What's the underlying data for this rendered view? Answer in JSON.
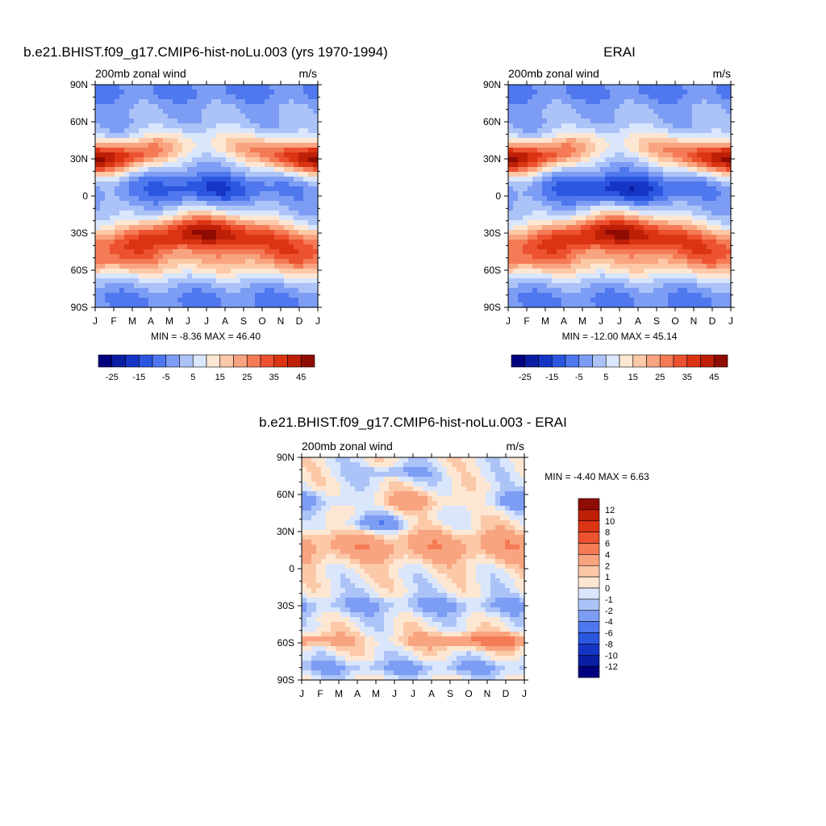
{
  "chart_data": [
    {
      "type": "heatmap",
      "title": "b.e21.BHIST.f09_g17.CMIP6-hist-noLu.003 (yrs 1970-1994)",
      "left_label": "200mb zonal wind",
      "right_label": "m/s",
      "x_ticks": [
        "J",
        "F",
        "M",
        "A",
        "M",
        "J",
        "J",
        "A",
        "S",
        "O",
        "N",
        "D",
        "J"
      ],
      "y_ticks": [
        "90N",
        "60N",
        "30N",
        "0",
        "30S",
        "60S",
        "90S"
      ],
      "min_max": "MIN =  -8.36 MAX =  46.40",
      "colorbar_labels": [
        "-25",
        "-15",
        "-5",
        "5",
        "15",
        "25",
        "35",
        "45"
      ],
      "contour_levels": [
        -30,
        -25,
        -20,
        -15,
        -10,
        -5,
        0,
        5,
        10,
        15,
        20,
        25,
        30,
        35,
        40,
        45,
        50
      ],
      "features": [
        {
          "month": 1.0,
          "lat": 28,
          "value": 42
        },
        {
          "month": 7.5,
          "lat": -30,
          "value": 46
        },
        {
          "month": 12.0,
          "lat": 30,
          "value": 40
        },
        {
          "month": 7.5,
          "lat": 5,
          "value": -8
        },
        {
          "month": 7.0,
          "lat": 35,
          "value": 12
        },
        {
          "month": 7.0,
          "lat": -55,
          "value": 28
        }
      ]
    },
    {
      "type": "heatmap",
      "title": "ERAI",
      "left_label": "200mb zonal wind",
      "right_label": "m/s",
      "x_ticks": [
        "J",
        "F",
        "M",
        "A",
        "M",
        "J",
        "J",
        "A",
        "S",
        "O",
        "N",
        "D",
        "J"
      ],
      "y_ticks": [
        "90N",
        "60N",
        "30N",
        "0",
        "30S",
        "60S",
        "90S"
      ],
      "min_max": "MIN = -12.00 MAX =  45.14",
      "colorbar_labels": [
        "-25",
        "-15",
        "-5",
        "5",
        "15",
        "25",
        "35",
        "45"
      ],
      "contour_levels": [
        -30,
        -25,
        -20,
        -15,
        -10,
        -5,
        0,
        5,
        10,
        15,
        20,
        25,
        30,
        35,
        40,
        45,
        50
      ],
      "features": [
        {
          "month": 1.0,
          "lat": 28,
          "value": 42
        },
        {
          "month": 7.5,
          "lat": -30,
          "value": 43
        },
        {
          "month": 12.0,
          "lat": 30,
          "value": 40
        },
        {
          "month": 7.5,
          "lat": 5,
          "value": -12
        },
        {
          "month": 7.0,
          "lat": 35,
          "value": 12
        },
        {
          "month": 7.0,
          "lat": -55,
          "value": 26
        }
      ]
    },
    {
      "type": "heatmap",
      "title": "b.e21.BHIST.f09_g17.CMIP6-hist-noLu.003 - ERAI",
      "left_label": "200mb zonal wind",
      "right_label": "m/s",
      "x_ticks": [
        "J",
        "F",
        "M",
        "A",
        "M",
        "J",
        "J",
        "A",
        "S",
        "O",
        "N",
        "D",
        "J"
      ],
      "y_ticks": [
        "90N",
        "60N",
        "30N",
        "0",
        "30S",
        "60S",
        "90S"
      ],
      "min_max": "MIN =  -4.40 MAX =   6.63",
      "colorbar_labels": [
        "12",
        "10",
        "8",
        "6",
        "4",
        "2",
        "1",
        "0",
        "-1",
        "-2",
        "-4",
        "-6",
        "-8",
        "-10",
        "-12"
      ],
      "contour_levels": [
        -12,
        -10,
        -8,
        -6,
        -4,
        -2,
        -1,
        0,
        1,
        2,
        4,
        6,
        8,
        10,
        12
      ],
      "features": [
        {
          "month": 5.0,
          "lat": 20,
          "value": 4
        },
        {
          "month": 10.0,
          "lat": -60,
          "value": 6.6
        },
        {
          "month": 3.5,
          "lat": -58,
          "value": 5
        },
        {
          "month": 4.5,
          "lat": 35,
          "value": -4.4
        },
        {
          "month": 6.0,
          "lat": 80,
          "value": -3
        },
        {
          "month": 6.5,
          "lat": -82,
          "value": -3
        }
      ]
    }
  ],
  "colors": {
    "main_palette": [
      "#00007f",
      "#0a1ea3",
      "#1535c6",
      "#2b56e0",
      "#4f78ef",
      "#7d9df5",
      "#acc3f8",
      "#d9e6fb",
      "#fde7d3",
      "#fcc9a8",
      "#f9a480",
      "#f47b55",
      "#ec5130",
      "#db3413",
      "#be1f07",
      "#8f0c02"
    ],
    "diff_palette": [
      "#00007f",
      "#0a1ea3",
      "#1535c6",
      "#2b56e0",
      "#4f78ef",
      "#7d9df5",
      "#acc3f8",
      "#d9e6fb",
      "#fde7d3",
      "#fcc9a8",
      "#f9a480",
      "#f47b55",
      "#ec5130",
      "#db3413",
      "#be1f07",
      "#8f0c02"
    ]
  }
}
